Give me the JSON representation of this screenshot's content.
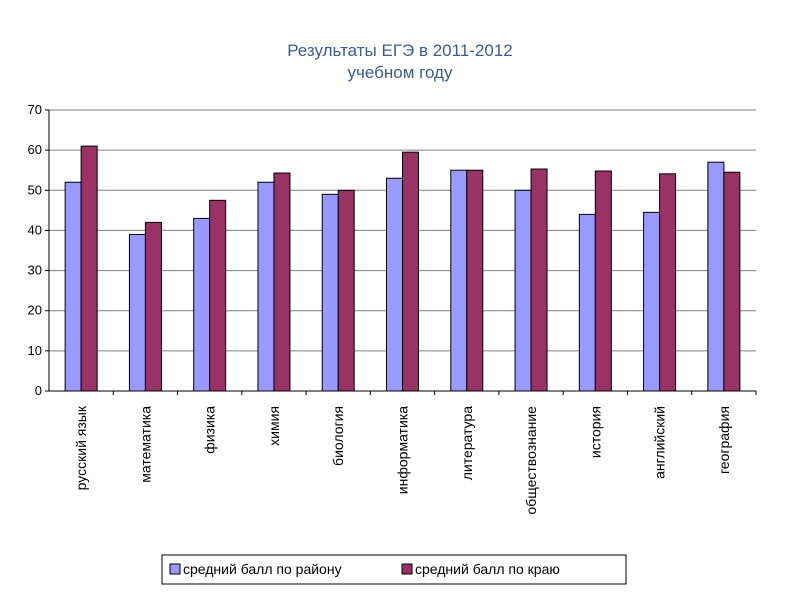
{
  "chart_data": {
    "type": "bar",
    "title_lines": [
      "Результаты ЕГЭ в 2011-2012",
      "учебном году"
    ],
    "categories": [
      "русский язык",
      "математика",
      "физика",
      "химия",
      "биология",
      "информатика",
      "литература",
      "обществознание",
      "история",
      "английский",
      "география"
    ],
    "series": [
      {
        "name": "средний балл по району",
        "values": [
          52,
          39,
          43,
          52,
          49,
          53,
          55,
          50,
          44,
          44.5,
          57
        ]
      },
      {
        "name": "средний балл по краю",
        "values": [
          61,
          42,
          47.5,
          54.3,
          50,
          59.5,
          55,
          55.3,
          54.8,
          54.1,
          54.5
        ]
      }
    ],
    "ylim": [
      0,
      70
    ],
    "yticks": [
      0,
      10,
      20,
      30,
      40,
      50,
      60,
      70
    ],
    "grid": true,
    "legend_position": "bottom",
    "colors": {
      "series_1": "#9999ff",
      "series_2": "#993366",
      "grid": "#808080",
      "title": "#3d5c8c"
    }
  }
}
